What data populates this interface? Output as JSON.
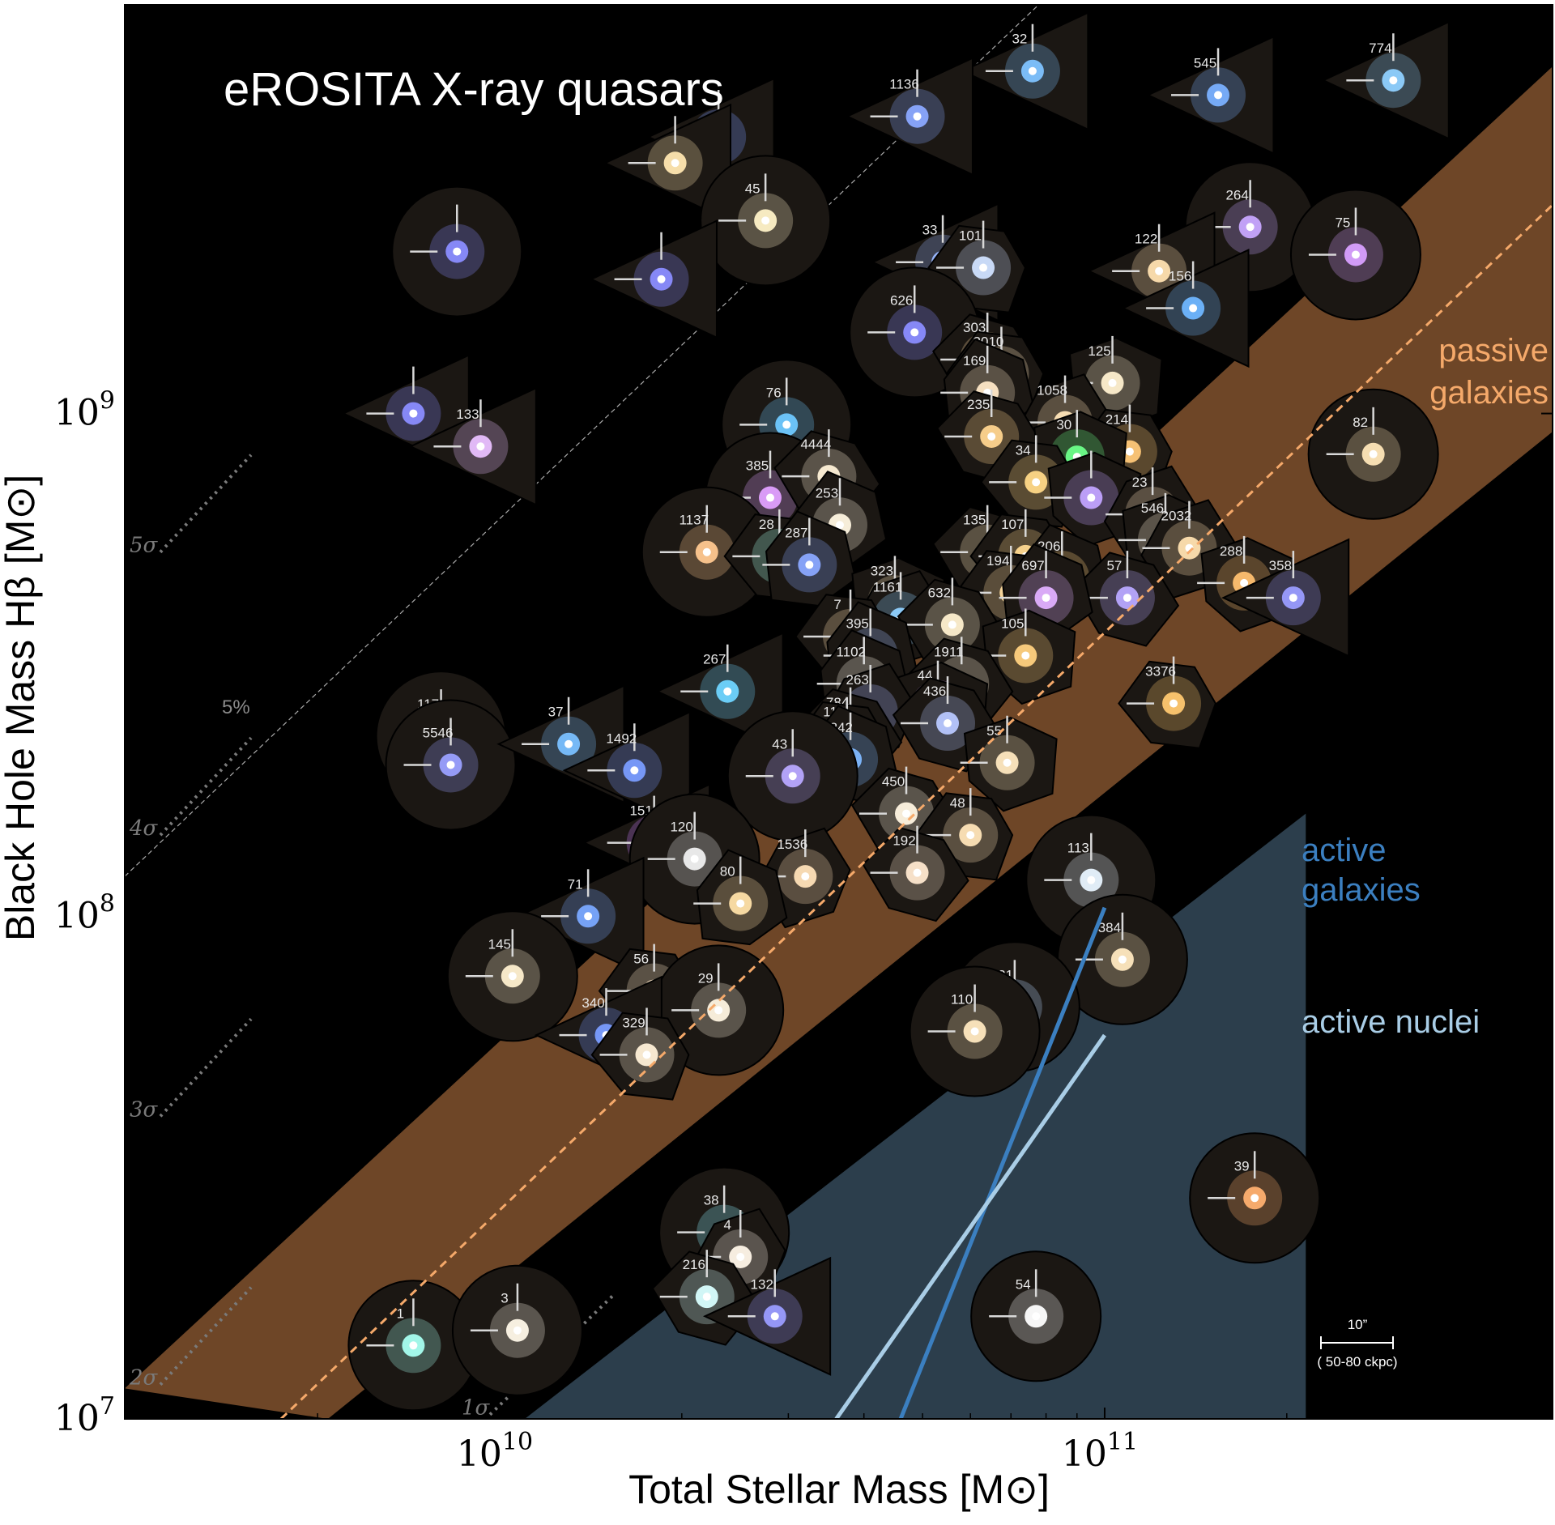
{
  "chart_data": {
    "type": "scatter",
    "title": "eROSITA X-ray quasars",
    "xlabel": "Total Stellar Mass [M⊙]",
    "ylabel": "Black Hole Mass Hβ [M⊙]",
    "x_scale": "log",
    "y_scale": "log",
    "xlim": [
      2400000000.0,
      550000000000.0
    ],
    "ylim": [
      10000000.0,
      6500000000.0
    ],
    "xticks": [
      {
        "value": 10000000000.0,
        "base": "10",
        "exp": "10"
      },
      {
        "value": 100000000000.0,
        "base": "10",
        "exp": "11"
      }
    ],
    "yticks": [
      {
        "value": 10000000.0,
        "base": "10",
        "exp": "7"
      },
      {
        "value": 100000000.0,
        "base": "10",
        "exp": "8"
      },
      {
        "value": 1000000000.0,
        "base": "10",
        "exp": "9"
      }
    ],
    "relations": [
      {
        "name": "passive galaxies",
        "label_lines": [
          "passive",
          "galaxies"
        ],
        "color": "#f5a96a",
        "style": "dashed",
        "points": [
          [
            4350000000.0,
            10000000.0
          ],
          [
            550000000000.0,
            2600000000.0
          ]
        ]
      },
      {
        "name": "active galaxies",
        "label_lines": [
          "active",
          "galaxies"
        ],
        "color": "#3b7fc0",
        "style": "solid",
        "points": [
          [
            46000000000.0,
            10000000.0
          ],
          [
            100000000000.0,
            104000000.0
          ]
        ]
      },
      {
        "name": "active nuclei",
        "label_lines": [
          "active nuclei"
        ],
        "color": "#a9cde6",
        "style": "solid",
        "points": [
          [
            36000000000.0,
            10000000.0
          ],
          [
            100000000000.0,
            58000000.0
          ]
        ]
      }
    ],
    "passive_band": {
      "color": "#6e4627",
      "lower": [
        [
          5200000000.0,
          10000000.0
        ],
        [
          550000000000.0,
          920000000.0
        ]
      ],
      "upper": [
        [
          2400000000.0,
          11500000.0
        ],
        [
          550000000000.0,
          4900000000.0
        ]
      ]
    },
    "active_region": {
      "color": "#2c3e4c",
      "points": [
        [
          11000000000.0,
          10000000.0
        ],
        [
          215000000000.0,
          10000000.0
        ],
        [
          215000000000.0,
          160000000.0
        ],
        [
          11000000000.0,
          10000000.0
        ]
      ]
    },
    "offset_line": {
      "label": "5%",
      "color": "#aaaaaa",
      "points": [
        [
          2400000000.0,
          120000000.0
        ],
        [
          85000000000.0,
          7200000000.0
        ]
      ]
    },
    "sigma_lines": [
      {
        "label": "5σ",
        "y_label": 530000000.0
      },
      {
        "label": "4σ",
        "y_label": 145000000.0
      },
      {
        "label": "3σ",
        "y_label": 40000000.0
      },
      {
        "label": "2σ",
        "y_label": 11700000.0
      },
      {
        "label": "1σ",
        "y_label": 10200000.0
      }
    ],
    "points": [
      {
        "id": "32",
        "x": 76000000000.0,
        "y": 4800000000.0,
        "shape": "triangle",
        "color": "#7fc3ff"
      },
      {
        "id": "1136",
        "x": 49000000000.0,
        "y": 3900000000.0,
        "shape": "triangle",
        "color": "#8aa8ff"
      },
      {
        "id": "545",
        "x": 154000000000.0,
        "y": 4300000000.0,
        "shape": "triangle",
        "color": "#7ab0ff"
      },
      {
        "id": "774",
        "x": 300000000000.0,
        "y": 4600000000.0,
        "shape": "triangle",
        "color": "#8fd0ff"
      },
      {
        "id": "",
        "x": 23000000000.0,
        "y": 3550000000.0,
        "shape": "triangle",
        "color": "#7a9bff"
      },
      {
        "id": "",
        "x": 19500000000.0,
        "y": 3150000000.0,
        "shape": "triangle",
        "color": "#ffe6b0"
      },
      {
        "id": "45",
        "x": 27500000000.0,
        "y": 2420000000.0,
        "shape": "circle",
        "color": "#fff2c8"
      },
      {
        "id": "",
        "x": 8500000000.0,
        "y": 2100000000.0,
        "shape": "circle",
        "color": "#8a8cff"
      },
      {
        "id": "",
        "x": 18500000000.0,
        "y": 1850000000.0,
        "shape": "triangle",
        "color": "#8a8cff"
      },
      {
        "id": "33",
        "x": 54000000000.0,
        "y": 2000000000.0,
        "shape": "triangle",
        "color": "#9ab8ff"
      },
      {
        "id": "101",
        "x": 63000000000.0,
        "y": 1950000000.0,
        "shape": "polygon",
        "color": "#cfe0ff"
      },
      {
        "id": "626",
        "x": 48500000000.0,
        "y": 1450000000.0,
        "shape": "circle",
        "color": "#8a8cff"
      },
      {
        "id": "264",
        "x": 174000000000.0,
        "y": 2350000000.0,
        "shape": "circle",
        "color": "#c7a6ff"
      },
      {
        "id": "75",
        "x": 260000000000.0,
        "y": 2070000000.0,
        "shape": "circle",
        "color": "#d8a0ff"
      },
      {
        "id": "122",
        "x": 123000000000.0,
        "y": 1920000000.0,
        "shape": "triangle",
        "color": "#ffe0b0"
      },
      {
        "id": "156",
        "x": 140000000000.0,
        "y": 1620000000.0,
        "shape": "triangle",
        "color": "#6fb6ff"
      },
      {
        "id": "",
        "x": 7200000000.0,
        "y": 1000000000.0,
        "shape": "triangle",
        "color": "#8a8cff"
      },
      {
        "id": "133",
        "x": 9300000000.0,
        "y": 860000000.0,
        "shape": "triangle",
        "color": "#e9c0ff"
      },
      {
        "id": "76",
        "x": 29800000000.0,
        "y": 950000000.0,
        "shape": "circle",
        "color": "#6fc9ff"
      },
      {
        "id": "303",
        "x": 64000000000.0,
        "y": 1280000000.0,
        "shape": "polygon",
        "color": "#ffd8a0"
      },
      {
        "id": "2010",
        "x": 67500000000.0,
        "y": 1200000000.0,
        "shape": "polygon",
        "color": "#ffe6c0"
      },
      {
        "id": "169",
        "x": 64000000000.0,
        "y": 1100000000.0,
        "shape": "polygon",
        "color": "#ffe8c8"
      },
      {
        "id": "125",
        "x": 103000000000.0,
        "y": 1150000000.0,
        "shape": "polygon",
        "color": "#fff0d0"
      },
      {
        "id": "1058",
        "x": 86000000000.0,
        "y": 960000000.0,
        "shape": "polygon",
        "color": "#ffe4b8"
      },
      {
        "id": "235",
        "x": 65000000000.0,
        "y": 900000000.0,
        "shape": "polygon",
        "color": "#ffd48f"
      },
      {
        "id": "214",
        "x": 110000000000.0,
        "y": 840000000.0,
        "shape": "polygon",
        "color": "#ffc878"
      },
      {
        "id": "82",
        "x": 278000000000.0,
        "y": 830000000.0,
        "shape": "circle",
        "color": "#ffe6b8"
      },
      {
        "id": "30",
        "x": 90000000000.0,
        "y": 820000000.0,
        "shape": "polygon",
        "color": "#6dff8a"
      },
      {
        "id": "385",
        "x": 28000000000.0,
        "y": 680000000.0,
        "shape": "circle",
        "color": "#e0a0ff"
      },
      {
        "id": "4444",
        "x": 35000000000.0,
        "y": 750000000.0,
        "shape": "polygon",
        "color": "#fff1d8"
      },
      {
        "id": "34",
        "x": 77000000000.0,
        "y": 730000000.0,
        "shape": "polygon",
        "color": "#ffd888"
      },
      {
        "id": "253",
        "x": 36500000000.0,
        "y": 600000000.0,
        "shape": "polygon",
        "color": "#fff6e0"
      },
      {
        "id": "",
        "x": 95000000000.0,
        "y": 680000000.0,
        "shape": "polygon",
        "color": "#c2a3ff"
      },
      {
        "id": "23",
        "x": 120000000000.0,
        "y": 630000000.0,
        "shape": "polygon",
        "color": "#ffe4c0"
      },
      {
        "id": "1137",
        "x": 22000000000.0,
        "y": 530000000.0,
        "shape": "circle",
        "color": "#ffc890"
      },
      {
        "id": "28",
        "x": 29000000000.0,
        "y": 520000000.0,
        "shape": "polygon",
        "color": "#a8ffe8"
      },
      {
        "id": "287",
        "x": 32500000000.0,
        "y": 500000000.0,
        "shape": "polygon",
        "color": "#8aa8ff"
      },
      {
        "id": "546",
        "x": 126000000000.0,
        "y": 560000000.0,
        "shape": "polygon",
        "color": "#fff0d8"
      },
      {
        "id": "2032",
        "x": 138000000000.0,
        "y": 540000000.0,
        "shape": "polygon",
        "color": "#ffe0b0"
      },
      {
        "id": "135",
        "x": 64000000000.0,
        "y": 530000000.0,
        "shape": "polygon",
        "color": "#ffe8c0"
      },
      {
        "id": "107",
        "x": 74000000000.0,
        "y": 520000000.0,
        "shape": "polygon",
        "color": "#ffd890"
      },
      {
        "id": "206",
        "x": 85000000000.0,
        "y": 470000000.0,
        "shape": "polygon",
        "color": "#ffd080"
      },
      {
        "id": "288",
        "x": 170000000000.0,
        "y": 460000000.0,
        "shape": "polygon",
        "color": "#ffc070"
      },
      {
        "id": "358",
        "x": 205000000000.0,
        "y": 430000000.0,
        "shape": "triangle",
        "color": "#9a9cff"
      },
      {
        "id": "57",
        "x": 109000000000.0,
        "y": 430000000.0,
        "shape": "polygon",
        "color": "#b8a8ff"
      },
      {
        "id": "194",
        "x": 70000000000.0,
        "y": 440000000.0,
        "shape": "polygon",
        "color": "#ffdca0"
      },
      {
        "id": "697",
        "x": 80000000000.0,
        "y": 430000000.0,
        "shape": "polygon",
        "color": "#e0b0ff"
      },
      {
        "id": "323",
        "x": 45000000000.0,
        "y": 420000000.0,
        "shape": "polygon",
        "color": "#ffe8c0"
      },
      {
        "id": "1161",
        "x": 46000000000.0,
        "y": 390000000.0,
        "shape": "polygon",
        "color": "#8fd0ff"
      },
      {
        "id": "632",
        "x": 56000000000.0,
        "y": 380000000.0,
        "shape": "polygon",
        "color": "#fff0d0"
      },
      {
        "id": "7",
        "x": 38000000000.0,
        "y": 360000000.0,
        "shape": "polygon",
        "color": "#ffe0b0"
      },
      {
        "id": "395",
        "x": 41000000000.0,
        "y": 330000000.0,
        "shape": "polygon",
        "color": "#a0c0ff"
      },
      {
        "id": "105",
        "x": 74000000000.0,
        "y": 330000000.0,
        "shape": "polygon",
        "color": "#ffd080"
      },
      {
        "id": "267",
        "x": 23800000000.0,
        "y": 280000000.0,
        "shape": "triangle",
        "color": "#6fd4ff"
      },
      {
        "id": "1911",
        "x": 58000000000.0,
        "y": 290000000.0,
        "shape": "polygon",
        "color": "#fff2d8"
      },
      {
        "id": "3376",
        "x": 130000000000.0,
        "y": 265000000.0,
        "shape": "polygon",
        "color": "#ffc870"
      },
      {
        "id": "1102",
        "x": 40000000000.0,
        "y": 290000000.0,
        "shape": "polygon",
        "color": "#fff8e8"
      },
      {
        "id": "44",
        "x": 53000000000.0,
        "y": 260000000.0,
        "shape": "polygon",
        "color": "#e0a8ff"
      },
      {
        "id": "263",
        "x": 41000000000.0,
        "y": 255000000.0,
        "shape": "polygon",
        "color": "#a8b8ff"
      },
      {
        "id": "436",
        "x": 55000000000.0,
        "y": 242000000.0,
        "shape": "polygon",
        "color": "#b8c8ff"
      },
      {
        "id": "117",
        "x": 8000000000.0,
        "y": 228000000.0,
        "shape": "circle",
        "color": "#ffd4a0"
      },
      {
        "id": "5546",
        "x": 8300000000.0,
        "y": 200000000.0,
        "shape": "circle",
        "color": "#9aa0ff"
      },
      {
        "id": "37",
        "x": 13000000000.0,
        "y": 220000000.0,
        "shape": "triangle",
        "color": "#7ac0ff"
      },
      {
        "id": "1492",
        "x": 16700000000.0,
        "y": 195000000.0,
        "shape": "triangle",
        "color": "#7a9cff"
      },
      {
        "id": "784",
        "x": 38000000000.0,
        "y": 230000000.0,
        "shape": "polygon",
        "color": "#fff0d8"
      },
      {
        "id": "114",
        "x": 37500000000.0,
        "y": 220000000.0,
        "shape": "polygon",
        "color": "#8fa8ff"
      },
      {
        "id": "5842",
        "x": 38000000000.0,
        "y": 205000000.0,
        "shape": "polygon",
        "color": "#7fb8ff"
      },
      {
        "id": "55",
        "x": 69000000000.0,
        "y": 202000000.0,
        "shape": "polygon",
        "color": "#ffe8c0"
      },
      {
        "id": "43",
        "x": 30500000000.0,
        "y": 190000000.0,
        "shape": "circle",
        "color": "#b8a8ff"
      },
      {
        "id": "450",
        "x": 47000000000.0,
        "y": 160000000.0,
        "shape": "polygon",
        "color": "#fff4e0"
      },
      {
        "id": "48",
        "x": 60000000000.0,
        "y": 145000000.0,
        "shape": "polygon",
        "color": "#ffe4b8"
      },
      {
        "id": "151",
        "x": 18000000000.0,
        "y": 140000000.0,
        "shape": "triangle",
        "color": "#c87fff"
      },
      {
        "id": "120",
        "x": 21000000000.0,
        "y": 130000000.0,
        "shape": "circle",
        "color": "#f0f0f0"
      },
      {
        "id": "1536",
        "x": 32000000000.0,
        "y": 120000000.0,
        "shape": "polygon",
        "color": "#ffe0b8"
      },
      {
        "id": "192",
        "x": 49000000000.0,
        "y": 122000000.0,
        "shape": "polygon",
        "color": "#ffe8d0"
      },
      {
        "id": "113",
        "x": 95000000000.0,
        "y": 118000000.0,
        "shape": "circle",
        "color": "#e8f4ff"
      },
      {
        "id": "80",
        "x": 25000000000.0,
        "y": 106000000.0,
        "shape": "polygon",
        "color": "#ffe0a8"
      },
      {
        "id": "71",
        "x": 14000000000.0,
        "y": 100000000.0,
        "shape": "triangle",
        "color": "#7aa8ff"
      },
      {
        "id": "384",
        "x": 107000000000.0,
        "y": 82000000.0,
        "shape": "circle",
        "color": "#ffe8c0"
      },
      {
        "id": "145",
        "x": 10500000000.0,
        "y": 76000000.0,
        "shape": "circle",
        "color": "#fff0d0"
      },
      {
        "id": "56",
        "x": 18000000000.0,
        "y": 71000000.0,
        "shape": "polygon",
        "color": "#ffe8c8"
      },
      {
        "id": "29",
        "x": 23000000000.0,
        "y": 65000000.0,
        "shape": "circle",
        "color": "#fff4e0"
      },
      {
        "id": "121",
        "x": 71000000000.0,
        "y": 66000000.0,
        "shape": "circle",
        "color": "#b8d8ff"
      },
      {
        "id": "110",
        "x": 61000000000.0,
        "y": 59000000.0,
        "shape": "circle",
        "color": "#ffe8c0"
      },
      {
        "id": "340",
        "x": 15000000000.0,
        "y": 58000000.0,
        "shape": "triangle",
        "color": "#7a9cff"
      },
      {
        "id": "329",
        "x": 17500000000.0,
        "y": 53000000.0,
        "shape": "polygon",
        "color": "#fff0d8"
      },
      {
        "id": "39",
        "x": 177000000000.0,
        "y": 27500000.0,
        "shape": "circle",
        "color": "#ffb070"
      },
      {
        "id": "38",
        "x": 23500000000.0,
        "y": 23500000.0,
        "shape": "circle",
        "color": "#8ff0ff"
      },
      {
        "id": "4",
        "x": 25000000000.0,
        "y": 21000000.0,
        "shape": "polygon",
        "color": "#fff6e8"
      },
      {
        "id": "216",
        "x": 22000000000.0,
        "y": 17500000.0,
        "shape": "polygon",
        "color": "#d8ffff"
      },
      {
        "id": "132",
        "x": 28500000000.0,
        "y": 16000000.0,
        "shape": "triangle",
        "color": "#9a9cff"
      },
      {
        "id": "54",
        "x": 77000000000.0,
        "y": 16000000.0,
        "shape": "circle",
        "color": "#ffffff"
      },
      {
        "id": "1",
        "x": 7200000000.0,
        "y": 14000000.0,
        "shape": "circle",
        "color": "#a8fff0"
      },
      {
        "id": "3",
        "x": 10700000000.0,
        "y": 15000000.0,
        "shape": "circle",
        "color": "#fff8e8"
      }
    ],
    "scale_bar": {
      "label": "10”",
      "sublabel": "( 50-80 ckpc)"
    }
  }
}
